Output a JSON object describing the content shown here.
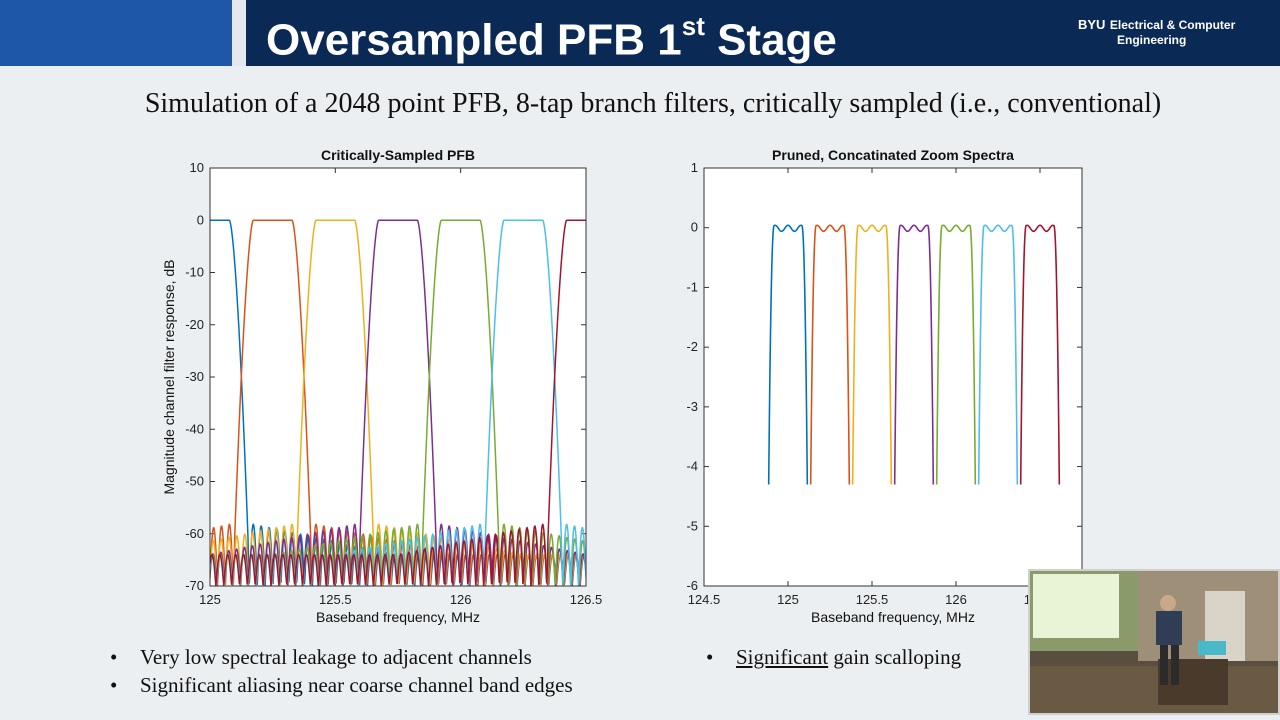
{
  "header": {
    "title_main": "Oversampled PFB 1",
    "title_sup": "st",
    "title_end": " Stage",
    "logo_mark": "BYU",
    "logo_line1": "Electrical & Computer",
    "logo_line2": "Engineering"
  },
  "subtitle": "Simulation of a 2048 point PFB, 8-tap branch filters, critically sampled (i.e., conventional)",
  "chart_data": [
    {
      "type": "line",
      "title": "Critically-Sampled PFB",
      "xlabel": "Baseband frequency, MHz",
      "ylabel": "Magnitude channel filter response, dB",
      "xlim": [
        125,
        126.5
      ],
      "ylim": [
        -70,
        10
      ],
      "xticks": [
        125,
        125.5,
        126,
        126.5
      ],
      "xtick_labels": [
        "125",
        "125.5",
        "126",
        "126.5"
      ],
      "yticks": [
        10,
        0,
        -10,
        -20,
        -30,
        -40,
        -50,
        -60,
        -70
      ],
      "ytick_labels": [
        "10",
        "0",
        "-10",
        "-20",
        "-30",
        "-40",
        "-50",
        "-60",
        "-70"
      ],
      "grid": false,
      "channel_centers": [
        125,
        125.25,
        125.5,
        125.75,
        126,
        126.25,
        126.5
      ],
      "channel_spacing_mhz": 0.25,
      "passband_level_db": 0,
      "sidelobe_floor_db": [
        -70,
        -58
      ],
      "series_colors": [
        "#0072BD",
        "#D95319",
        "#EDB120",
        "#7E2F8E",
        "#77AC30",
        "#4DBEEE",
        "#A2142F"
      ]
    },
    {
      "type": "line",
      "title": "Pruned, Concatinated Zoom Spectra",
      "xlabel": "Baseband frequency, MHz",
      "ylabel": "",
      "xlim": [
        124.5,
        126.75
      ],
      "ylim": [
        -6,
        1
      ],
      "xticks": [
        124.5,
        125,
        125.5,
        126,
        126.5
      ],
      "xtick_labels": [
        "124.5",
        "125",
        "125.5",
        "126",
        "126.5"
      ],
      "yticks": [
        1,
        0,
        -1,
        -2,
        -3,
        -4,
        -5,
        -6
      ],
      "ytick_labels": [
        "1",
        "0",
        "-1",
        "-2",
        "-3",
        "-4",
        "-5",
        "-6"
      ],
      "grid": false,
      "segment_centers": [
        125,
        125.25,
        125.5,
        125.75,
        126,
        126.25,
        126.5
      ],
      "segment_width_mhz": 0.25,
      "passband_ripple_db": 0.05,
      "edge_level_db": -4.3,
      "series_colors": [
        "#0072BD",
        "#D95319",
        "#EDB120",
        "#7E2F8E",
        "#77AC30",
        "#4DBEEE",
        "#A2142F"
      ]
    }
  ],
  "bullets_left": [
    {
      "dot": "•",
      "text": "Very low spectral leakage to adjacent channels"
    },
    {
      "dot": "•",
      "text": "Significant aliasing near coarse channel band edges"
    }
  ],
  "bullets_right": [
    {
      "dot": "•",
      "underlined": "Significant",
      "text": " gain scalloping"
    }
  ]
}
